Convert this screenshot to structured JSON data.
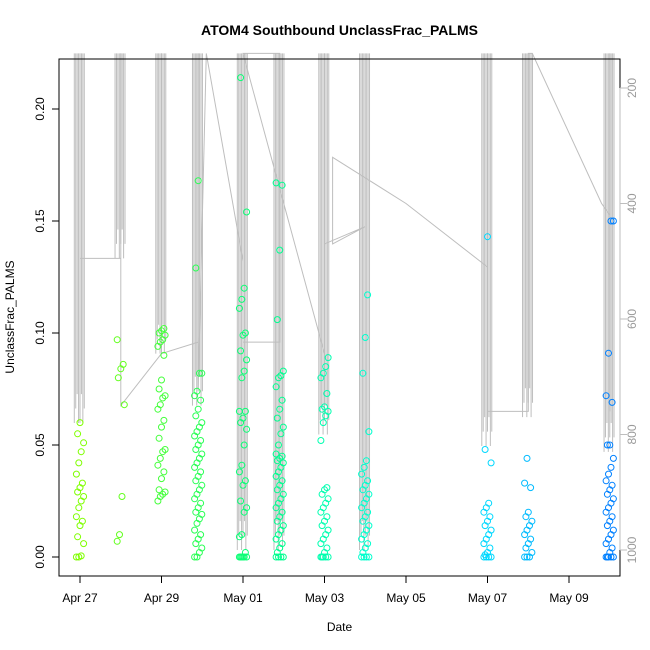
{
  "chart_data": {
    "type": "scatter",
    "title": "ATOM4 Southbound UnclassFrac_PALMS",
    "xlabel": "Date",
    "ylabel": "UnclassFrac_PALMS",
    "x_ticks": [
      "Apr 27",
      "Apr 29",
      "May 01",
      "May 03",
      "May 05",
      "May 07",
      "May 09"
    ],
    "x_tick_days": [
      0,
      2,
      4,
      6,
      8,
      10,
      12
    ],
    "xlim_days": [
      -0.4,
      13.0
    ],
    "y_ticks": [
      0.0,
      0.05,
      0.1,
      0.15,
      0.2
    ],
    "y_tick_labels": [
      "0.00",
      "0.05",
      "0.10",
      "0.15",
      "0.20"
    ],
    "ylim": [
      -0.006,
      0.223
    ],
    "secondary_axis": {
      "ticks": [
        200,
        400,
        600,
        800,
        1000
      ],
      "range_top": 140,
      "range_bottom": 1040,
      "color": "#bebebe"
    },
    "point_style": "open circle",
    "point_color_range": [
      "#7fff00",
      "#00ff7f",
      "#00ffff",
      "#0080ff"
    ],
    "grid": false,
    "legend": "none",
    "series": [
      {
        "groups": [
          {
            "day": 0.0,
            "values": [
              0.0,
              0.0,
              0.0005,
              0.006,
              0.009,
              0.014,
              0.016,
              0.018,
              0.022,
              0.025,
              0.027,
              0.029,
              0.031,
              0.033,
              0.037,
              0.042,
              0.047,
              0.051,
              0.055,
              0.06
            ]
          },
          {
            "day": 1.0,
            "values": [
              0.007,
              0.01,
              0.027,
              0.068,
              0.08,
              0.084,
              0.086,
              0.097
            ]
          },
          {
            "day": 2.0,
            "values": [
              0.025,
              0.027,
              0.028,
              0.029,
              0.03,
              0.035,
              0.038,
              0.041,
              0.044,
              0.047,
              0.048,
              0.053,
              0.058,
              0.061,
              0.066,
              0.068,
              0.071,
              0.072,
              0.075,
              0.079,
              0.09,
              0.094,
              0.096,
              0.097,
              0.099,
              0.1,
              0.101,
              0.102
            ]
          },
          {
            "day": 2.9,
            "values": [
              0.0,
              0.0,
              0.002,
              0.004,
              0.006,
              0.008,
              0.01,
              0.012,
              0.015,
              0.017,
              0.019,
              0.02,
              0.022,
              0.024,
              0.026,
              0.028,
              0.03,
              0.032,
              0.034,
              0.036,
              0.038,
              0.04,
              0.042,
              0.044,
              0.046,
              0.048,
              0.05,
              0.052,
              0.054,
              0.056,
              0.058,
              0.06,
              0.063,
              0.066,
              0.07,
              0.072,
              0.074,
              0.082,
              0.082,
              0.129,
              0.168
            ]
          },
          {
            "day": 4.0,
            "values": [
              0.0,
              0.0,
              0.0,
              0.0,
              0.0,
              0.0,
              0.002,
              0.009,
              0.01,
              0.02,
              0.022,
              0.025,
              0.032,
              0.034,
              0.038,
              0.041,
              0.05,
              0.057,
              0.06,
              0.062,
              0.065,
              0.065,
              0.08,
              0.083,
              0.088,
              0.092,
              0.099,
              0.1,
              0.111,
              0.115,
              0.12,
              0.154,
              0.214
            ]
          },
          {
            "day": 4.9,
            "values": [
              0.0,
              0.0,
              0.0,
              0.0,
              0.002,
              0.004,
              0.006,
              0.008,
              0.01,
              0.012,
              0.014,
              0.016,
              0.018,
              0.02,
              0.022,
              0.024,
              0.026,
              0.028,
              0.03,
              0.032,
              0.034,
              0.036,
              0.038,
              0.04,
              0.042,
              0.043,
              0.044,
              0.045,
              0.046,
              0.05,
              0.055,
              0.058,
              0.062,
              0.066,
              0.07,
              0.076,
              0.08,
              0.081,
              0.083,
              0.106,
              0.137,
              0.166,
              0.167
            ]
          },
          {
            "day": 6.0,
            "values": [
              0.0,
              0.0,
              0.0,
              0.0,
              0.0,
              0.002,
              0.004,
              0.006,
              0.008,
              0.01,
              0.012,
              0.014,
              0.016,
              0.018,
              0.02,
              0.022,
              0.024,
              0.026,
              0.028,
              0.03,
              0.031,
              0.052,
              0.06,
              0.063,
              0.065,
              0.066,
              0.067,
              0.073,
              0.08,
              0.082,
              0.085,
              0.089
            ]
          },
          {
            "day": 7.0,
            "values": [
              0.0,
              0.0,
              0.0,
              0.0,
              0.002,
              0.004,
              0.006,
              0.008,
              0.01,
              0.012,
              0.014,
              0.016,
              0.018,
              0.02,
              0.022,
              0.024,
              0.026,
              0.028,
              0.03,
              0.032,
              0.034,
              0.037,
              0.04,
              0.043,
              0.056,
              0.082,
              0.098,
              0.117
            ]
          },
          {
            "day": 10.0,
            "values": [
              0.0,
              0.0,
              0.0,
              0.0,
              0.001,
              0.002,
              0.004,
              0.006,
              0.008,
              0.01,
              0.012,
              0.014,
              0.016,
              0.018,
              0.02,
              0.022,
              0.024,
              0.042,
              0.048,
              0.143
            ]
          },
          {
            "day": 11.0,
            "values": [
              0.0,
              0.0,
              0.0,
              0.002,
              0.004,
              0.006,
              0.008,
              0.01,
              0.012,
              0.014,
              0.016,
              0.018,
              0.02,
              0.031,
              0.033,
              0.044
            ]
          },
          {
            "day": 13.0,
            "values": [
              0.0,
              0.0,
              0.0,
              0.0,
              0.0,
              0.002,
              0.004,
              0.006,
              0.008,
              0.01,
              0.012,
              0.014,
              0.016,
              0.018,
              0.02,
              0.022,
              0.024,
              0.026,
              0.028,
              0.03,
              0.032,
              0.034,
              0.037,
              0.04,
              0.044,
              0.05,
              0.05,
              0.069,
              0.072,
              0.091,
              0.15,
              0.15
            ]
          }
        ]
      }
    ],
    "secondary_line": {
      "color": "#bebebe",
      "segments": [
        {
          "day": 0.0,
          "low": 140,
          "high": 780
        },
        {
          "day": 1.0,
          "low": 140,
          "high": 495
        },
        {
          "day": 2.0,
          "low": 140,
          "high": 660
        },
        {
          "day": 2.9,
          "low": 140,
          "high": 750
        },
        {
          "day": 4.0,
          "low": 140,
          "high": 1000
        },
        {
          "day": 4.9,
          "low": 140,
          "high": 1000
        },
        {
          "day": 6.0,
          "low": 140,
          "high": 800
        },
        {
          "day": 7.0,
          "low": 140,
          "high": 1000
        },
        {
          "day": 10.0,
          "low": 140,
          "high": 820
        },
        {
          "day": 11.0,
          "low": 140,
          "high": 770
        },
        {
          "day": 13.0,
          "low": 140,
          "high": 830
        }
      ],
      "path": [
        [
          0.0,
          780
        ],
        [
          0.0,
          140
        ],
        [
          0.0,
          495
        ],
        [
          1.0,
          495
        ],
        [
          1.0,
          140
        ],
        [
          1.0,
          750
        ],
        [
          2.0,
          660
        ],
        [
          2.0,
          140
        ],
        [
          2.0,
          660
        ],
        [
          2.9,
          640
        ],
        [
          2.9,
          140
        ],
        [
          2.9,
          720
        ],
        [
          3.1,
          140
        ],
        [
          4.0,
          500
        ],
        [
          4.0,
          140
        ],
        [
          4.0,
          640
        ],
        [
          4.9,
          640
        ],
        [
          4.9,
          140
        ],
        [
          4.0,
          140
        ],
        [
          6.0,
          660
        ],
        [
          6.0,
          140
        ],
        [
          6.0,
          470
        ],
        [
          7.0,
          440
        ],
        [
          6.2,
          470
        ],
        [
          6.2,
          320
        ],
        [
          8.0,
          400
        ],
        [
          10.0,
          510
        ],
        [
          10.0,
          140
        ],
        [
          10.0,
          760
        ],
        [
          11.0,
          760
        ],
        [
          11.0,
          140
        ],
        [
          11.1,
          140
        ],
        [
          12.8,
          400
        ],
        [
          13.0,
          420
        ],
        [
          13.0,
          140
        ],
        [
          13.0,
          760
        ]
      ]
    }
  }
}
